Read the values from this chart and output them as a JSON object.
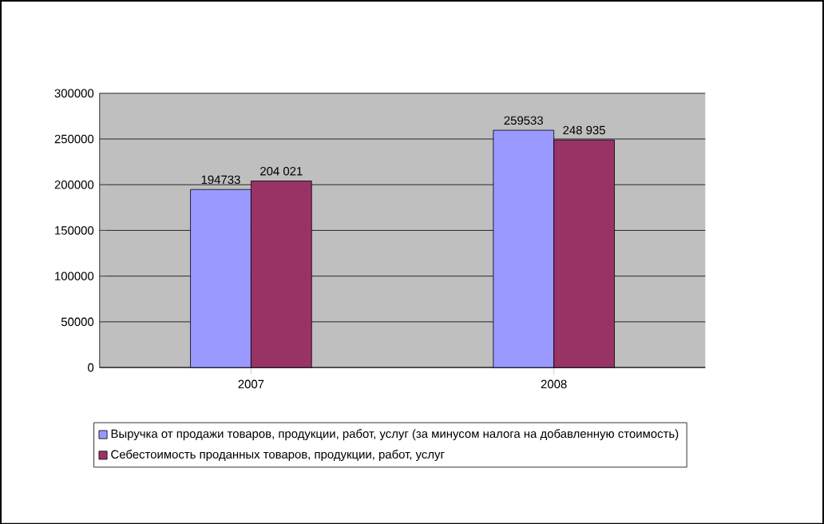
{
  "chart_data": {
    "type": "bar",
    "categories": [
      "2007",
      "2008"
    ],
    "series": [
      {
        "name": "Выручка от продажи товаров, продукции, работ, услуг (за минусом налога на добавленную стоимость)",
        "color": "#9999ff",
        "values": [
          194733,
          259533
        ],
        "value_labels": [
          "194733",
          "259533"
        ]
      },
      {
        "name": "Себестоимость проданных товаров, продукции, работ, услуг",
        "color": "#993366",
        "values": [
          204021,
          248935
        ],
        "value_labels": [
          "204 021",
          "248 935"
        ]
      }
    ],
    "ylim": [
      0,
      300000
    ],
    "yticks": [
      0,
      50000,
      100000,
      150000,
      200000,
      250000,
      300000
    ],
    "grid": "y",
    "legend": "bottom"
  }
}
